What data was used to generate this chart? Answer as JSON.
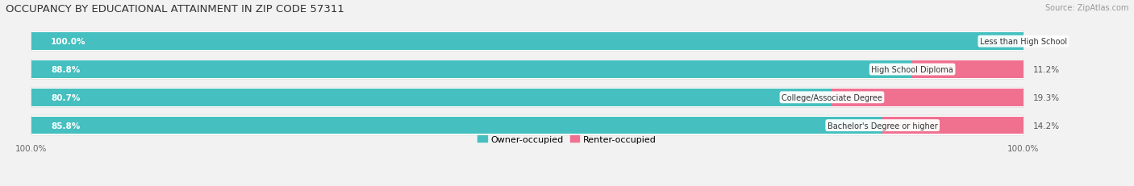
{
  "title": "OCCUPANCY BY EDUCATIONAL ATTAINMENT IN ZIP CODE 57311",
  "source": "Source: ZipAtlas.com",
  "categories": [
    "Less than High School",
    "High School Diploma",
    "College/Associate Degree",
    "Bachelor's Degree or higher"
  ],
  "owner_pct": [
    100.0,
    88.8,
    80.7,
    85.8
  ],
  "renter_pct": [
    0.0,
    11.2,
    19.3,
    14.2
  ],
  "owner_color": "#45BFBF",
  "renter_color": "#F07090",
  "bg_color": "#f2f2f2",
  "bar_bg_color": "#e8e8e8",
  "bar_row_bg": "#ffffff",
  "title_fontsize": 9.5,
  "label_fontsize": 7.5,
  "axis_label_fontsize": 7.5,
  "legend_fontsize": 8,
  "source_fontsize": 7,
  "bar_height": 0.62,
  "total_width": 100.0,
  "left_axis_label": "100.0%",
  "right_axis_label": "100.0%"
}
